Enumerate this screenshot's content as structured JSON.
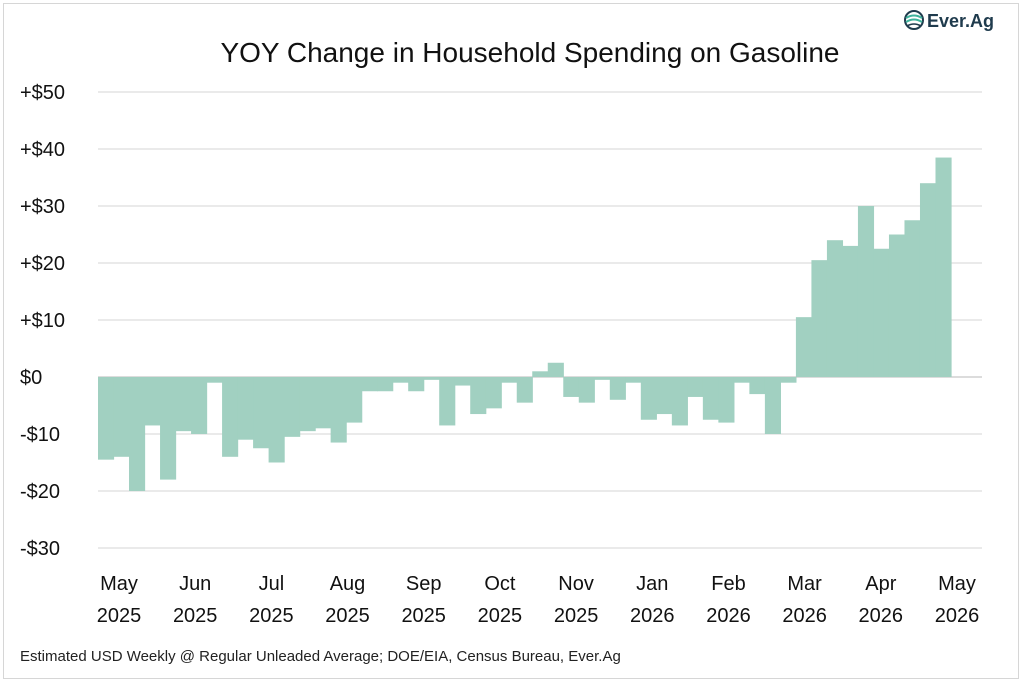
{
  "logo": {
    "text": "Ever.Ag",
    "color": "#1f3b4d",
    "accent": "#3fb39c"
  },
  "chart_data": {
    "type": "bar",
    "title": "YOY Change in Household Spending on Gasoline",
    "source_note": "Estimated USD Weekly @ Regular Unleaded Average; DOE/EIA, Census Bureau, Ever.Ag",
    "bar_color": "#a1d0c1",
    "grid": true,
    "ylim": [
      -30,
      50
    ],
    "y_ticks": [
      50,
      40,
      30,
      20,
      10,
      0,
      -10,
      -20,
      -30
    ],
    "y_tick_labels": [
      "+$50",
      "+$40",
      "+$30",
      "+$20",
      "+$10",
      "$0",
      "-$10",
      "-$20",
      "-$30"
    ],
    "x_tick_labels": [
      [
        "May",
        "2025"
      ],
      [
        "Jun",
        "2025"
      ],
      [
        "Jul",
        "2025"
      ],
      [
        "Aug",
        "2025"
      ],
      [
        "Sep",
        "2025"
      ],
      [
        "Oct",
        "2025"
      ],
      [
        "Nov",
        "2025"
      ],
      [
        "Jan",
        "2026"
      ],
      [
        "Feb",
        "2026"
      ],
      [
        "Mar",
        "2026"
      ],
      [
        "Apr",
        "2026"
      ],
      [
        "May",
        "2026"
      ]
    ],
    "values": [
      -14.5,
      -14.0,
      -20.0,
      -8.5,
      -18.0,
      -9.5,
      -10.0,
      -1.0,
      -14.0,
      -11.0,
      -12.5,
      -15.0,
      -10.5,
      -9.5,
      -9.0,
      -11.5,
      -8.0,
      -2.5,
      -2.5,
      -1.0,
      -2.5,
      -0.5,
      -8.5,
      -1.5,
      -6.5,
      -5.5,
      -1.0,
      -4.5,
      1.0,
      2.5,
      -3.5,
      -4.5,
      -0.5,
      -4.0,
      -1.0,
      -7.5,
      -6.5,
      -8.5,
      -3.5,
      -7.5,
      -8.0,
      -1.0,
      -3.0,
      -10.0,
      -1.0,
      10.5,
      20.5,
      24.0,
      23.0,
      30.0,
      22.5,
      25.0,
      27.5,
      34.0,
      38.5
    ]
  }
}
